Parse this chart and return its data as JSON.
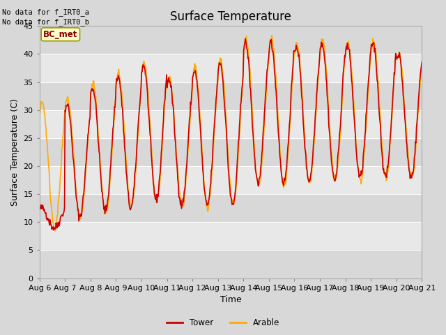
{
  "title": "Surface Temperature",
  "xlabel": "Time",
  "ylabel": "Surface Temperature (C)",
  "ylim": [
    0,
    45
  ],
  "yticks": [
    0,
    5,
    10,
    15,
    20,
    25,
    30,
    35,
    40,
    45
  ],
  "tower_color": "#cc0000",
  "arable_color": "#ffaa00",
  "fig_bg_color": "#d8d8d8",
  "plot_bg_color": "#e8e8e8",
  "band_light_color": "#e8e8e8",
  "band_dark_color": "#d8d8d8",
  "legend_items": [
    "Tower",
    "Arable"
  ],
  "annotation_text": "No data for f_IRT0_a\nNo data for f_IRT0_b",
  "bc_met_label": "BC_met",
  "title_fontsize": 12,
  "axis_fontsize": 9,
  "tick_fontsize": 8,
  "figsize": [
    6.4,
    4.8
  ],
  "dpi": 100
}
